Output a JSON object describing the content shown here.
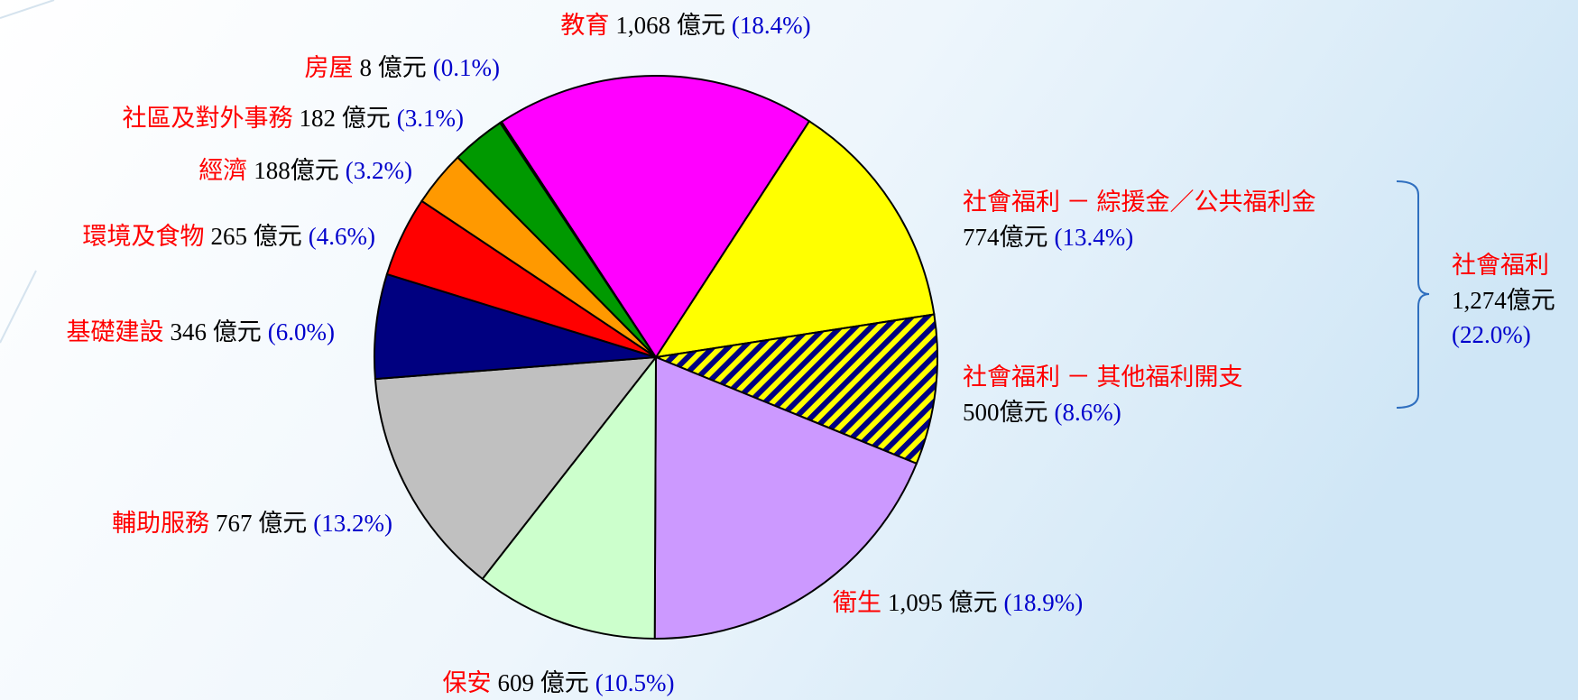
{
  "chart_data": {
    "type": "pie",
    "slices": [
      {
        "name": "社會福利 － 綜援金／公共福利金",
        "value": 13.4,
        "value_label": "(13.4%)",
        "amount": {
          "value": 774,
          "label": "774億元"
        },
        "color": "#ffff00"
      },
      {
        "name": "社會福利 － 其他福利開支",
        "value": 8.6,
        "value_label": "(8.6%)",
        "amount": {
          "value": 500,
          "label": "500億元"
        },
        "color": "#ffff00",
        "hatch": "#000080"
      },
      {
        "name": "衛生",
        "value": 18.9,
        "value_label": "(18.9%)",
        "amount": {
          "value": 1095,
          "label": "1,095 億元"
        },
        "color": "#cc99ff"
      },
      {
        "name": "保安",
        "value": 10.5,
        "value_label": "(10.5%)",
        "amount": {
          "value": 609,
          "label": "609 億元"
        },
        "color": "#ccffcc"
      },
      {
        "name": "輔助服務",
        "value": 13.2,
        "value_label": "(13.2%)",
        "amount": {
          "value": 767,
          "label": "767 億元"
        },
        "color": "#c0c0c0"
      },
      {
        "name": "基礎建設",
        "value": 6.0,
        "value_label": "(6.0%)",
        "amount": {
          "value": 346,
          "label": "346 億元"
        },
        "color": "#000080"
      },
      {
        "name": "環境及食物",
        "value": 4.6,
        "value_label": "(4.6%)",
        "amount": {
          "value": 265,
          "label": "265 億元"
        },
        "color": "#ff0000"
      },
      {
        "name": "經濟",
        "value": 3.2,
        "value_label": "(3.2%)",
        "amount": {
          "value": 188,
          "label": "188億元"
        },
        "color": "#ff9900"
      },
      {
        "name": "社區及對外事務",
        "value": 3.1,
        "value_label": "(3.1%)",
        "amount": {
          "value": 182,
          "label": "182 億元"
        },
        "color": "#009900"
      },
      {
        "name": "房屋",
        "value": 0.1,
        "value_label": "(0.1%)",
        "amount": {
          "value": 8,
          "label": "8 億元"
        },
        "color": "#6600cc"
      },
      {
        "name": "教育",
        "value": 18.4,
        "value_label": "(18.4%)",
        "amount": {
          "value": 1068,
          "label": "1,068 億元"
        },
        "color": "#ff00ff"
      }
    ],
    "annotation": {
      "name": "社會福利",
      "amount": {
        "value": 1274,
        "label": "1,274億元"
      },
      "value": 22.0,
      "value_label": "(22.0%)"
    }
  }
}
